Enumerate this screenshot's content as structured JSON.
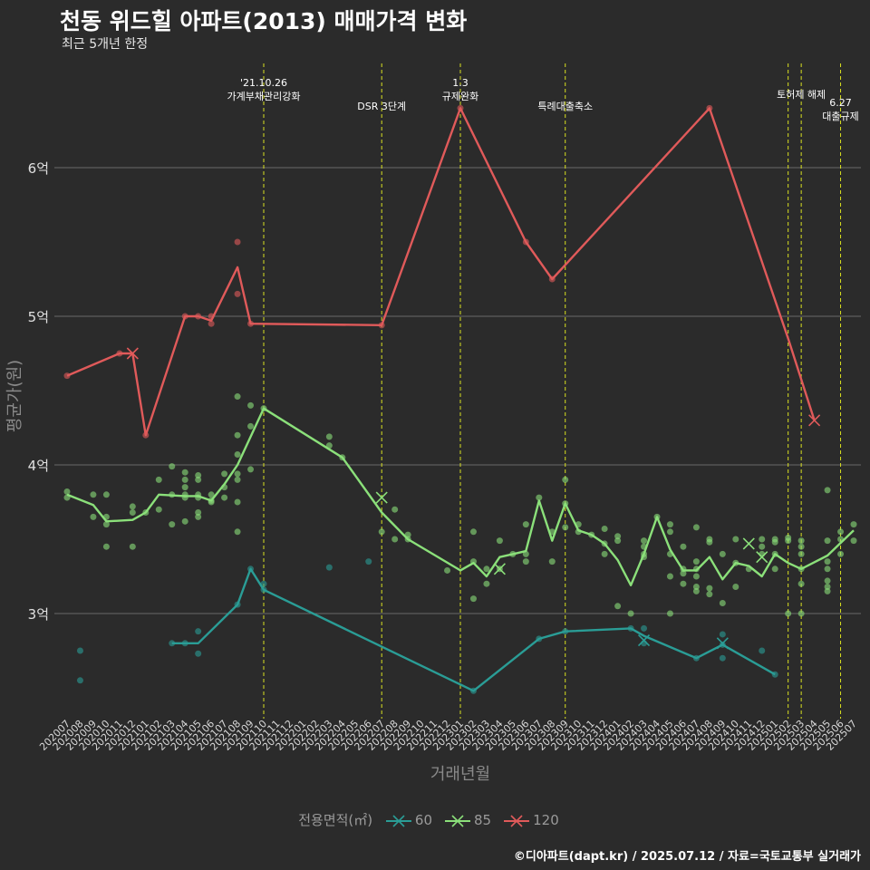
{
  "chart_data": {
    "type": "line",
    "title": "천동 위드힐 아파트(2013) 매매가격 변화",
    "subtitle": "최근 5개년 한정",
    "xlabel": "거래년월",
    "ylabel": "평균가(원)",
    "caption": "©디아파트(dapt.kr) / 2025.07.12 / 자료=국토교통부 실거래가",
    "legend_title": "전용면적(㎡)",
    "legend_position": "bottom",
    "ylim": [
      2.3,
      7.0
    ],
    "yticks": [
      3,
      4,
      5,
      6
    ],
    "ytick_labels": [
      "3억",
      "4억",
      "5억",
      "6억"
    ],
    "grid": true,
    "x": [
      "202007",
      "202008",
      "202009",
      "202010",
      "202011",
      "202012",
      "202101",
      "202102",
      "202103",
      "202104",
      "202105",
      "202106",
      "202107",
      "202108",
      "202109",
      "202110",
      "202111",
      "202112",
      "202201",
      "202202",
      "202203",
      "202204",
      "202205",
      "202206",
      "202207",
      "202208",
      "202209",
      "202210",
      "202211",
      "202212",
      "202301",
      "202302",
      "202303",
      "202304",
      "202305",
      "202306",
      "202307",
      "202308",
      "202309",
      "202310",
      "202311",
      "202312",
      "202401",
      "202402",
      "202403",
      "202404",
      "202405",
      "202406",
      "202407",
      "202408",
      "202409",
      "202410",
      "202411",
      "202412",
      "202501",
      "202502",
      "202503",
      "202504",
      "202505",
      "202506",
      "202507"
    ],
    "series": [
      {
        "name": "60",
        "color": "#2a9d96",
        "line": [
          [
            "202103",
            2.8
          ],
          [
            "202104",
            2.8
          ],
          [
            "202105",
            2.8
          ],
          [
            "202108",
            3.06
          ],
          [
            "202109",
            3.3
          ],
          [
            "202110",
            3.16
          ],
          [
            "202302",
            2.48
          ],
          [
            "202307",
            2.83
          ],
          [
            "202309",
            2.88
          ],
          [
            "202402",
            2.9
          ],
          [
            "202403",
            2.85
          ],
          [
            "202407",
            2.7
          ],
          [
            "202409",
            2.79
          ],
          [
            "202501",
            2.59
          ]
        ],
        "points": [
          [
            "202008",
            2.75
          ],
          [
            "202008",
            2.55
          ],
          [
            "202103",
            2.8
          ],
          [
            "202104",
            2.8
          ],
          [
            "202105",
            2.88
          ],
          [
            "202105",
            2.73
          ],
          [
            "202108",
            3.06
          ],
          [
            "202109",
            3.3
          ],
          [
            "202110",
            3.16
          ],
          [
            "202110",
            3.2
          ],
          [
            "202203",
            3.31
          ],
          [
            "202206",
            3.35
          ],
          [
            "202302",
            2.48
          ],
          [
            "202307",
            2.83
          ],
          [
            "202309",
            2.88
          ],
          [
            "202402",
            2.9
          ],
          [
            "202403",
            2.9
          ],
          [
            "202403",
            2.8
          ],
          [
            "202407",
            2.7
          ],
          [
            "202409",
            2.86
          ],
          [
            "202409",
            2.7
          ],
          [
            "202409",
            2.79
          ],
          [
            "202412",
            2.75
          ],
          [
            "202501",
            2.59
          ]
        ],
        "cancelled": [
          [
            "202403",
            2.82
          ],
          [
            "202409",
            2.8
          ]
        ]
      },
      {
        "name": "85",
        "color": "#8be07a",
        "line": [
          [
            "202007",
            3.8
          ],
          [
            "202009",
            3.73
          ],
          [
            "202010",
            3.62
          ],
          [
            "202012",
            3.63
          ],
          [
            "202101",
            3.68
          ],
          [
            "202102",
            3.8
          ],
          [
            "202104",
            3.79
          ],
          [
            "202105",
            3.79
          ],
          [
            "202106",
            3.76
          ],
          [
            "202107",
            3.87
          ],
          [
            "202108",
            4.0
          ],
          [
            "202110",
            4.38
          ],
          [
            "202204",
            4.05
          ],
          [
            "202207",
            3.68
          ],
          [
            "202209",
            3.5
          ],
          [
            "202301",
            3.29
          ],
          [
            "202302",
            3.34
          ],
          [
            "202303",
            3.25
          ],
          [
            "202304",
            3.38
          ],
          [
            "202305",
            3.4
          ],
          [
            "202306",
            3.42
          ],
          [
            "202307",
            3.76
          ],
          [
            "202308",
            3.49
          ],
          [
            "202309",
            3.74
          ],
          [
            "202310",
            3.56
          ],
          [
            "202311",
            3.53
          ],
          [
            "202312",
            3.47
          ],
          [
            "202401",
            3.36
          ],
          [
            "202402",
            3.19
          ],
          [
            "202403",
            3.4
          ],
          [
            "202404",
            3.65
          ],
          [
            "202405",
            3.43
          ],
          [
            "202406",
            3.29
          ],
          [
            "202407",
            3.29
          ],
          [
            "202408",
            3.38
          ],
          [
            "202409",
            3.23
          ],
          [
            "202410",
            3.34
          ],
          [
            "202411",
            3.32
          ],
          [
            "202412",
            3.25
          ],
          [
            "202501",
            3.4
          ],
          [
            "202502",
            3.34
          ],
          [
            "202503",
            3.3
          ],
          [
            "202505",
            3.39
          ],
          [
            "202507",
            3.56
          ]
        ],
        "points": [
          [
            "202007",
            3.82
          ],
          [
            "202007",
            3.78
          ],
          [
            "202009",
            3.8
          ],
          [
            "202009",
            3.65
          ],
          [
            "202010",
            3.8
          ],
          [
            "202010",
            3.65
          ],
          [
            "202010",
            3.6
          ],
          [
            "202010",
            3.45
          ],
          [
            "202012",
            3.72
          ],
          [
            "202012",
            3.68
          ],
          [
            "202012",
            3.45
          ],
          [
            "202101",
            3.68
          ],
          [
            "202102",
            3.9
          ],
          [
            "202102",
            3.7
          ],
          [
            "202103",
            3.99
          ],
          [
            "202103",
            3.8
          ],
          [
            "202103",
            3.6
          ],
          [
            "202104",
            3.95
          ],
          [
            "202104",
            3.9
          ],
          [
            "202104",
            3.85
          ],
          [
            "202104",
            3.8
          ],
          [
            "202104",
            3.78
          ],
          [
            "202104",
            3.62
          ],
          [
            "202105",
            3.93
          ],
          [
            "202105",
            3.9
          ],
          [
            "202105",
            3.8
          ],
          [
            "202105",
            3.78
          ],
          [
            "202105",
            3.68
          ],
          [
            "202105",
            3.65
          ],
          [
            "202106",
            3.8
          ],
          [
            "202106",
            3.76
          ],
          [
            "202106",
            3.75
          ],
          [
            "202107",
            3.94
          ],
          [
            "202107",
            3.85
          ],
          [
            "202107",
            3.78
          ],
          [
            "202108",
            4.46
          ],
          [
            "202108",
            4.2
          ],
          [
            "202108",
            4.07
          ],
          [
            "202108",
            3.94
          ],
          [
            "202108",
            3.9
          ],
          [
            "202108",
            3.75
          ],
          [
            "202108",
            3.55
          ],
          [
            "202109",
            4.4
          ],
          [
            "202109",
            4.26
          ],
          [
            "202109",
            3.97
          ],
          [
            "202110",
            4.38
          ],
          [
            "202203",
            4.19
          ],
          [
            "202203",
            4.13
          ],
          [
            "202204",
            4.05
          ],
          [
            "202207",
            3.55
          ],
          [
            "202208",
            3.7
          ],
          [
            "202208",
            3.5
          ],
          [
            "202209",
            3.53
          ],
          [
            "202209",
            3.5
          ],
          [
            "202212",
            3.29
          ],
          [
            "202302",
            3.55
          ],
          [
            "202302",
            3.35
          ],
          [
            "202302",
            3.1
          ],
          [
            "202303",
            3.3
          ],
          [
            "202303",
            3.2
          ],
          [
            "202304",
            3.49
          ],
          [
            "202304",
            3.3
          ],
          [
            "202305",
            3.4
          ],
          [
            "202306",
            3.6
          ],
          [
            "202306",
            3.4
          ],
          [
            "202306",
            3.35
          ],
          [
            "202307",
            3.78
          ],
          [
            "202308",
            3.55
          ],
          [
            "202308",
            3.35
          ],
          [
            "202309",
            3.9
          ],
          [
            "202309",
            3.74
          ],
          [
            "202309",
            3.58
          ],
          [
            "202310",
            3.6
          ],
          [
            "202310",
            3.55
          ],
          [
            "202311",
            3.53
          ],
          [
            "202312",
            3.57
          ],
          [
            "202312",
            3.47
          ],
          [
            "202312",
            3.4
          ],
          [
            "202401",
            3.52
          ],
          [
            "202401",
            3.49
          ],
          [
            "202401",
            3.05
          ],
          [
            "202402",
            3.0
          ],
          [
            "202403",
            3.49
          ],
          [
            "202403",
            3.45
          ],
          [
            "202403",
            3.4
          ],
          [
            "202403",
            3.38
          ],
          [
            "202404",
            3.65
          ],
          [
            "202405",
            3.6
          ],
          [
            "202405",
            3.55
          ],
          [
            "202405",
            3.4
          ],
          [
            "202405",
            3.25
          ],
          [
            "202405",
            3.0
          ],
          [
            "202406",
            3.45
          ],
          [
            "202406",
            3.3
          ],
          [
            "202406",
            3.27
          ],
          [
            "202406",
            3.2
          ],
          [
            "202407",
            3.58
          ],
          [
            "202407",
            3.35
          ],
          [
            "202407",
            3.3
          ],
          [
            "202407",
            3.25
          ],
          [
            "202407",
            3.18
          ],
          [
            "202407",
            3.15
          ],
          [
            "202408",
            3.5
          ],
          [
            "202408",
            3.48
          ],
          [
            "202408",
            3.17
          ],
          [
            "202408",
            3.13
          ],
          [
            "202409",
            3.4
          ],
          [
            "202409",
            3.07
          ],
          [
            "202410",
            3.5
          ],
          [
            "202410",
            3.34
          ],
          [
            "202410",
            3.18
          ],
          [
            "202411",
            3.3
          ],
          [
            "202412",
            3.5
          ],
          [
            "202412",
            3.45
          ],
          [
            "202412",
            3.4
          ],
          [
            "202501",
            3.5
          ],
          [
            "202501",
            3.48
          ],
          [
            "202501",
            3.4
          ],
          [
            "202501",
            3.3
          ],
          [
            "202502",
            3.51
          ],
          [
            "202502",
            3.49
          ],
          [
            "202502",
            3.0
          ],
          [
            "202503",
            3.49
          ],
          [
            "202503",
            3.45
          ],
          [
            "202503",
            3.4
          ],
          [
            "202503",
            3.3
          ],
          [
            "202503",
            3.2
          ],
          [
            "202503",
            3.0
          ],
          [
            "202505",
            3.83
          ],
          [
            "202505",
            3.49
          ],
          [
            "202505",
            3.35
          ],
          [
            "202505",
            3.3
          ],
          [
            "202505",
            3.22
          ],
          [
            "202505",
            3.18
          ],
          [
            "202505",
            3.15
          ],
          [
            "202506",
            3.55
          ],
          [
            "202506",
            3.5
          ],
          [
            "202506",
            3.4
          ],
          [
            "202507",
            3.6
          ],
          [
            "202507",
            3.49
          ]
        ],
        "cancelled": [
          [
            "202207",
            3.78
          ],
          [
            "202304",
            3.3
          ],
          [
            "202411",
            3.47
          ],
          [
            "202412",
            3.38
          ]
        ]
      },
      {
        "name": "120",
        "color": "#e05a5a",
        "line": [
          [
            "202007",
            4.6
          ],
          [
            "202011",
            4.75
          ],
          [
            "202012",
            4.75
          ],
          [
            "202101",
            4.2
          ],
          [
            "202104",
            5.0
          ],
          [
            "202105",
            5.0
          ],
          [
            "202106",
            4.97
          ],
          [
            "202108",
            5.33
          ],
          [
            "202109",
            4.95
          ],
          [
            "202207",
            4.94
          ],
          [
            "202301",
            6.4
          ],
          [
            "202306",
            5.5
          ],
          [
            "202308",
            5.25
          ],
          [
            "202408",
            6.4
          ],
          [
            "202502",
            4.85
          ],
          [
            "202504",
            4.3
          ]
        ],
        "points": [
          [
            "202007",
            4.6
          ],
          [
            "202011",
            4.75
          ],
          [
            "202101",
            4.2
          ],
          [
            "202104",
            5.0
          ],
          [
            "202105",
            5.0
          ],
          [
            "202106",
            5.0
          ],
          [
            "202106",
            4.95
          ],
          [
            "202108",
            5.5
          ],
          [
            "202108",
            5.15
          ],
          [
            "202109",
            4.95
          ],
          [
            "202207",
            4.94
          ],
          [
            "202301",
            6.4
          ],
          [
            "202306",
            5.5
          ],
          [
            "202308",
            5.25
          ],
          [
            "202408",
            6.4
          ]
        ],
        "cancelled": [
          [
            "202012",
            4.75
          ],
          [
            "202504",
            4.3
          ]
        ]
      }
    ],
    "vlines": [
      {
        "x": "202110",
        "lines": [
          "'21.10.26",
          "가계부채관리강화"
        ],
        "row": 0
      },
      {
        "x": "202207",
        "lines": [
          "DSR 3단계"
        ],
        "row": 2
      },
      {
        "x": "202301",
        "lines": [
          "1.3",
          "규제완화"
        ],
        "row": 0
      },
      {
        "x": "202309",
        "lines": [
          "특례대출축소"
        ],
        "row": 2
      },
      {
        "x": "202502",
        "lines": [],
        "row": 0
      },
      {
        "x": "202503",
        "lines": [
          "토허제 해제"
        ],
        "row": 1
      },
      {
        "x": "202506",
        "lines": [
          "6.27",
          "대출규제"
        ],
        "row": 1.7
      }
    ]
  }
}
